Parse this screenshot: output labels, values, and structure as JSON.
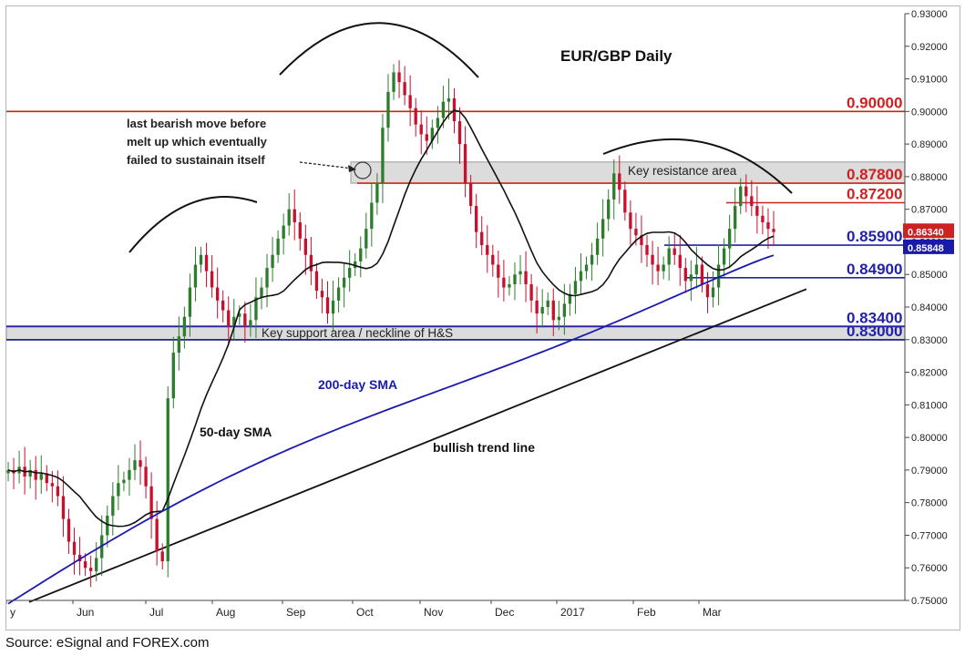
{
  "caption": "Source: eSignal and FOREX.com",
  "chart_data": {
    "type": "candlestick",
    "title": "EUR/GBP Daily",
    "xlabel": "",
    "ylabel": "",
    "ylim": [
      0.75,
      0.93
    ],
    "y_ticks": [
      "0.93000",
      "0.92000",
      "0.91000",
      "0.90000",
      "0.89000",
      "0.88000",
      "0.87000",
      "0.86000",
      "0.85000",
      "0.84000",
      "0.83000",
      "0.82000",
      "0.81000",
      "0.80000",
      "0.79000",
      "0.78000",
      "0.77000",
      "0.76000",
      "0.75000"
    ],
    "x_tick_labels": [
      "y",
      "Jun",
      "Jul",
      "Aug",
      "Sep",
      "Oct",
      "Nov",
      "Dec",
      "2017",
      "Feb",
      "Mar"
    ],
    "grid": false,
    "series": [
      {
        "name": "",
        "values": [
          0.79,
          0.789,
          0.791,
          0.788,
          0.79,
          0.787,
          0.789,
          0.786,
          0.785,
          0.782,
          0.775,
          0.768,
          0.764,
          0.762,
          0.76,
          0.759,
          0.763,
          0.77,
          0.776,
          0.782,
          0.786,
          0.787,
          0.79,
          0.793,
          0.791,
          0.785,
          0.775,
          0.765,
          0.762,
          0.812,
          0.826,
          0.831,
          0.837,
          0.846,
          0.853,
          0.856,
          0.851,
          0.846,
          0.842,
          0.839,
          0.834,
          0.837,
          0.838,
          0.834,
          0.836,
          0.843,
          0.846,
          0.852,
          0.856,
          0.861,
          0.865,
          0.87,
          0.866,
          0.861,
          0.856,
          0.851,
          0.845,
          0.843,
          0.838,
          0.842,
          0.846,
          0.849,
          0.852,
          0.854,
          0.858,
          0.864,
          0.872,
          0.878,
          0.895,
          0.906,
          0.912,
          0.909,
          0.905,
          0.901,
          0.896,
          0.893,
          0.891,
          0.895,
          0.898,
          0.903,
          0.904,
          0.897,
          0.89,
          0.878,
          0.871,
          0.863,
          0.859,
          0.856,
          0.853,
          0.849,
          0.846,
          0.847,
          0.85,
          0.851,
          0.847,
          0.842,
          0.838,
          0.84,
          0.842,
          0.836,
          0.837,
          0.841,
          0.844,
          0.848,
          0.851,
          0.853,
          0.856,
          0.861,
          0.867,
          0.873,
          0.881,
          0.876,
          0.869,
          0.864,
          0.862,
          0.859,
          0.856,
          0.853,
          0.851,
          0.853,
          0.858,
          0.856,
          0.852,
          0.848,
          0.85,
          0.853,
          0.847,
          0.843,
          0.846,
          0.853,
          0.858,
          0.864,
          0.871,
          0.877,
          0.874,
          0.871,
          0.868,
          0.866,
          0.864,
          0.863
        ]
      }
    ],
    "overlays": {
      "sma50_label": "50-day SMA",
      "sma200_label": "200-day SMA",
      "trend_label": "bullish trend line"
    },
    "levels": [
      {
        "label": "0.90000",
        "value": 0.9,
        "color": "#cc2222"
      },
      {
        "label": "0.87800",
        "value": 0.878,
        "color": "#cc2222"
      },
      {
        "label": "0.87200",
        "value": 0.872,
        "color": "#cc2222"
      },
      {
        "label": "0.85900",
        "value": 0.859,
        "color": "#2222aa"
      },
      {
        "label": "0.84900",
        "value": 0.849,
        "color": "#2222aa"
      },
      {
        "label": "0.83400",
        "value": 0.834,
        "color": "#2222aa"
      },
      {
        "label": "0.83000",
        "value": 0.83,
        "color": "#2222aa"
      }
    ],
    "badges": [
      {
        "label": "0.86340",
        "value": 0.8634,
        "color": "#cc2222"
      },
      {
        "label": "0.85848",
        "value": 0.85848,
        "color": "#1a1aa8"
      }
    ],
    "annotations": {
      "resistance": "Key resistance area",
      "support": "Key support area / neckline of H&S",
      "bearish_line1": "last bearish move before",
      "bearish_line2": "melt up which eventually",
      "bearish_line3": "failed to sustainain itself"
    }
  }
}
